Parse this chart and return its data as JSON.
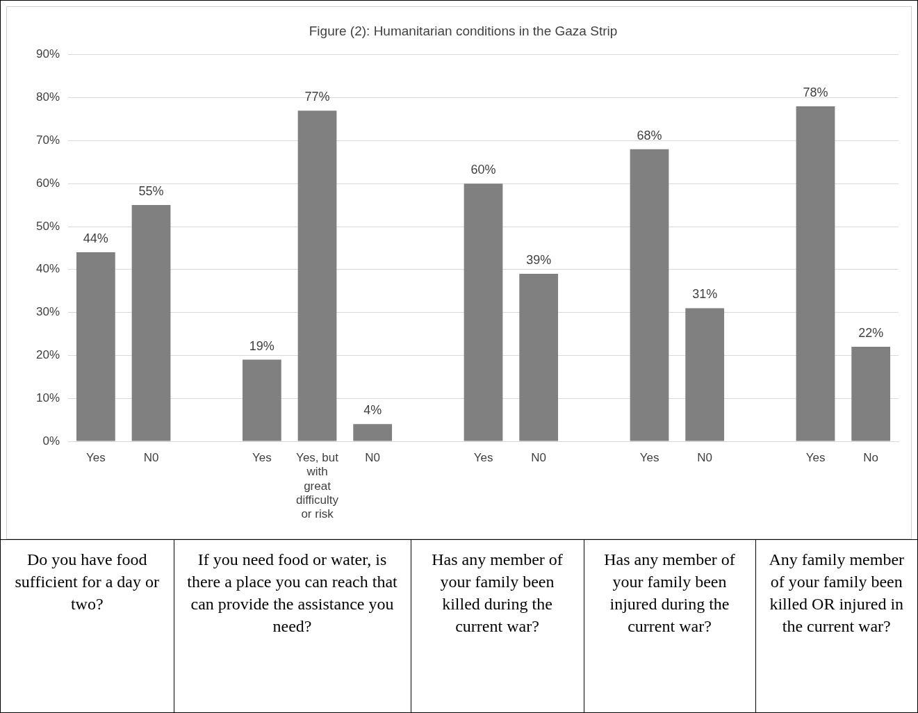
{
  "chart_data": {
    "type": "bar",
    "title": "Figure (2): Humanitarian conditions in the Gaza Strip",
    "categories": [
      "Yes",
      "N0",
      null,
      "Yes",
      "Yes, but with great difficulty or risk",
      "N0",
      null,
      "Yes",
      "N0",
      null,
      "Yes",
      "N0",
      null,
      "Yes",
      "No"
    ],
    "values": [
      44,
      55,
      null,
      19,
      77,
      4,
      null,
      60,
      39,
      null,
      68,
      31,
      null,
      78,
      22
    ],
    "value_labels": [
      "44%",
      "55%",
      null,
      "19%",
      "77%",
      "4%",
      null,
      "60%",
      "39%",
      null,
      "68%",
      "31%",
      null,
      "78%",
      "22%"
    ],
    "color": "#808080",
    "ylim": [
      0,
      90
    ],
    "yticks": [
      {
        "value": 0,
        "label": "0%"
      },
      {
        "value": 10,
        "label": "10%"
      },
      {
        "value": 20,
        "label": "20%"
      },
      {
        "value": 30,
        "label": "30%"
      },
      {
        "value": 40,
        "label": "40%"
      },
      {
        "value": 50,
        "label": "50%"
      },
      {
        "value": 60,
        "label": "60%"
      },
      {
        "value": 70,
        "label": "70%"
      },
      {
        "value": 80,
        "label": "80%"
      },
      {
        "value": 90,
        "label": "90%"
      }
    ],
    "grid": "y",
    "legend": false,
    "annotations": [
      "Do you have food sufficient for a day or two?",
      "If you need food or water, is there a place you can reach that can provide the assistance you need?",
      "Has any member of your family been killed during the current war?",
      "Has any member of your family been injured during the current war?",
      "Any family member of your family been killed OR injured in the current war?"
    ]
  }
}
